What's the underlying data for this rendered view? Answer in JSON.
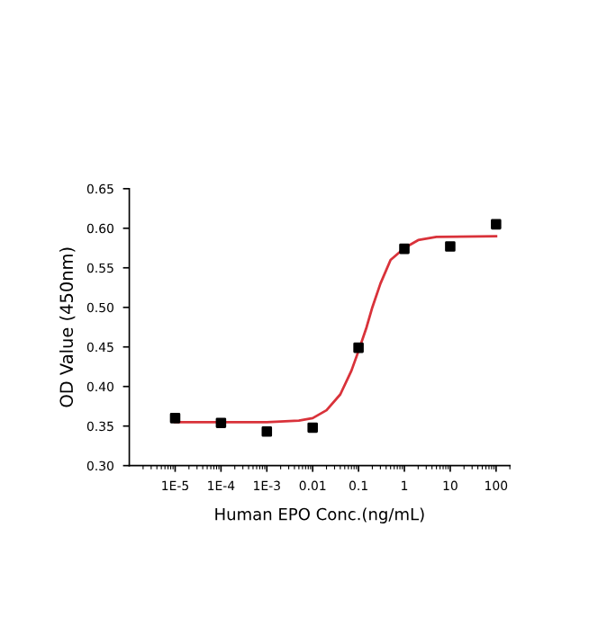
{
  "chart_data": {
    "type": "scatter",
    "xlabel": "Human EPO Conc.(ng/mL)",
    "ylabel": "OD Value (450nm)",
    "log": "x",
    "xlim": [
      1e-06,
      200
    ],
    "xticks": [
      {
        "value": 1e-05,
        "label": "1E-5"
      },
      {
        "value": 0.0001,
        "label": "1E-4"
      },
      {
        "value": 0.001,
        "label": "1E-3"
      },
      0.01,
      0.1,
      1,
      10,
      100
    ],
    "ylim": [
      0.3,
      0.65
    ],
    "yticks": [
      {
        "value": 0.3,
        "label": "0.30"
      },
      {
        "value": 0.35,
        "label": "0.35"
      },
      {
        "value": 0.4,
        "label": "0.40"
      },
      {
        "value": 0.45,
        "label": "0.45"
      },
      {
        "value": 0.5,
        "label": "0.50"
      },
      {
        "value": 0.55,
        "label": "0.55"
      },
      {
        "value": 0.6,
        "label": "0.60"
      },
      {
        "value": 0.65,
        "label": "0.65"
      }
    ],
    "grid": false,
    "series": [
      {
        "color": "#000000",
        "marker": "square",
        "x": [
          1e-05,
          0.0001,
          0.001,
          0.01,
          0.1,
          1,
          10,
          100
        ],
        "values": [
          0.36,
          0.354,
          0.343,
          0.348,
          0.449,
          0.574,
          0.577,
          0.605
        ]
      },
      {
        "type": "line",
        "color": "#d9323a",
        "line_style": "solid",
        "marker": "none",
        "x": [
          1e-05,
          0.001,
          0.005,
          0.01,
          0.02,
          0.04,
          0.07,
          0.1,
          0.15,
          0.2,
          0.3,
          0.5,
          1,
          2,
          5,
          100
        ],
        "values": [
          0.355,
          0.355,
          0.357,
          0.36,
          0.37,
          0.39,
          0.42,
          0.445,
          0.475,
          0.5,
          0.53,
          0.56,
          0.575,
          0.585,
          0.589,
          0.59
        ]
      }
    ]
  }
}
